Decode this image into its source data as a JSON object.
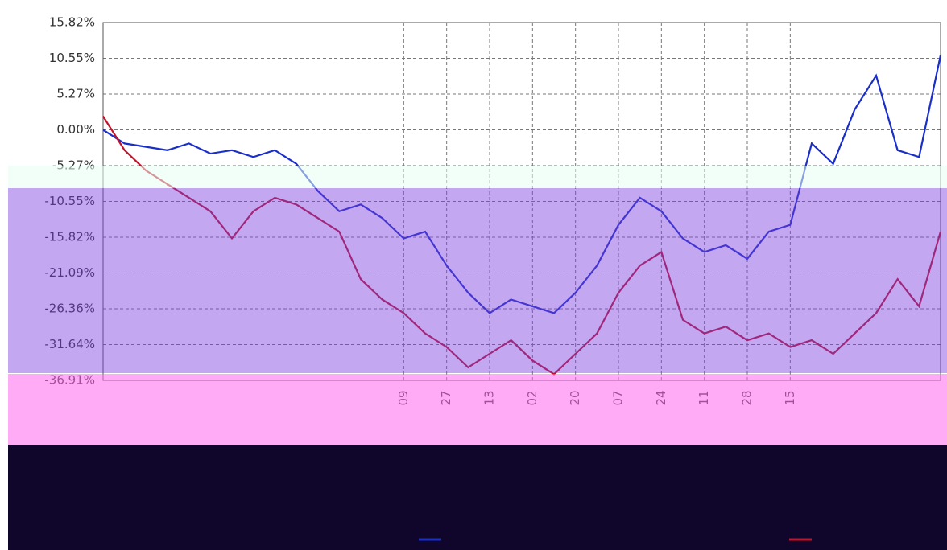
{
  "chart_data": {
    "type": "line",
    "ylim": [
      -36.91,
      15.82
    ],
    "yticks": [
      {
        "value": 15.82,
        "label": "15.82%"
      },
      {
        "value": 10.55,
        "label": "10.55%"
      },
      {
        "value": 5.27,
        "label": "5.27%"
      },
      {
        "value": 0,
        "label": "0.00%"
      },
      {
        "value": -5.27,
        "label": "-5.27%"
      },
      {
        "value": -10.55,
        "label": "-10.55%"
      },
      {
        "value": -15.82,
        "label": "-15.82%"
      },
      {
        "value": -21.09,
        "label": "-21.09%"
      },
      {
        "value": -26.36,
        "label": "-26.36%"
      },
      {
        "value": -31.64,
        "label": "-31.64%"
      },
      {
        "value": -36.91,
        "label": "-36.91%"
      }
    ],
    "xlim": [
      0,
      39
    ],
    "xticks": [
      {
        "value": 14,
        "label": "09"
      },
      {
        "value": 16,
        "label": "27"
      },
      {
        "value": 18,
        "label": "13"
      },
      {
        "value": 20,
        "label": "02"
      },
      {
        "value": 22,
        "label": "20"
      },
      {
        "value": 24,
        "label": "07"
      },
      {
        "value": 26,
        "label": "24"
      },
      {
        "value": 28,
        "label": "11"
      },
      {
        "value": 30,
        "label": "28"
      },
      {
        "value": 32,
        "label": "15"
      }
    ],
    "grid": true,
    "series": [
      {
        "color": "#1a2fc8",
        "values": [
          0,
          -2,
          -2.5,
          -3,
          -2,
          -3.5,
          -3,
          -4,
          -3,
          -5,
          -9,
          -12,
          -11,
          -13,
          -16,
          -15,
          -20,
          -24,
          -27,
          -25,
          -26,
          -27,
          -24,
          -20,
          -14,
          -10,
          -12,
          -16,
          -18,
          -17,
          -19,
          -15,
          -14,
          -2,
          -5,
          3,
          8,
          -3,
          -4,
          11
        ]
      },
      {
        "color": "#c0142a",
        "values": [
          2,
          -3,
          -6,
          -8,
          -10,
          -12,
          -16,
          -12,
          -10,
          -11,
          -13,
          -15,
          -22,
          -25,
          -27,
          -30,
          -32,
          -35,
          -33,
          -31,
          -34,
          -36,
          -33,
          -30,
          -24,
          -20,
          -18,
          -28,
          -30,
          -29,
          -31,
          -30,
          -32,
          -31,
          -33,
          -30,
          -27,
          -22,
          -26,
          -15
        ]
      }
    ]
  }
}
